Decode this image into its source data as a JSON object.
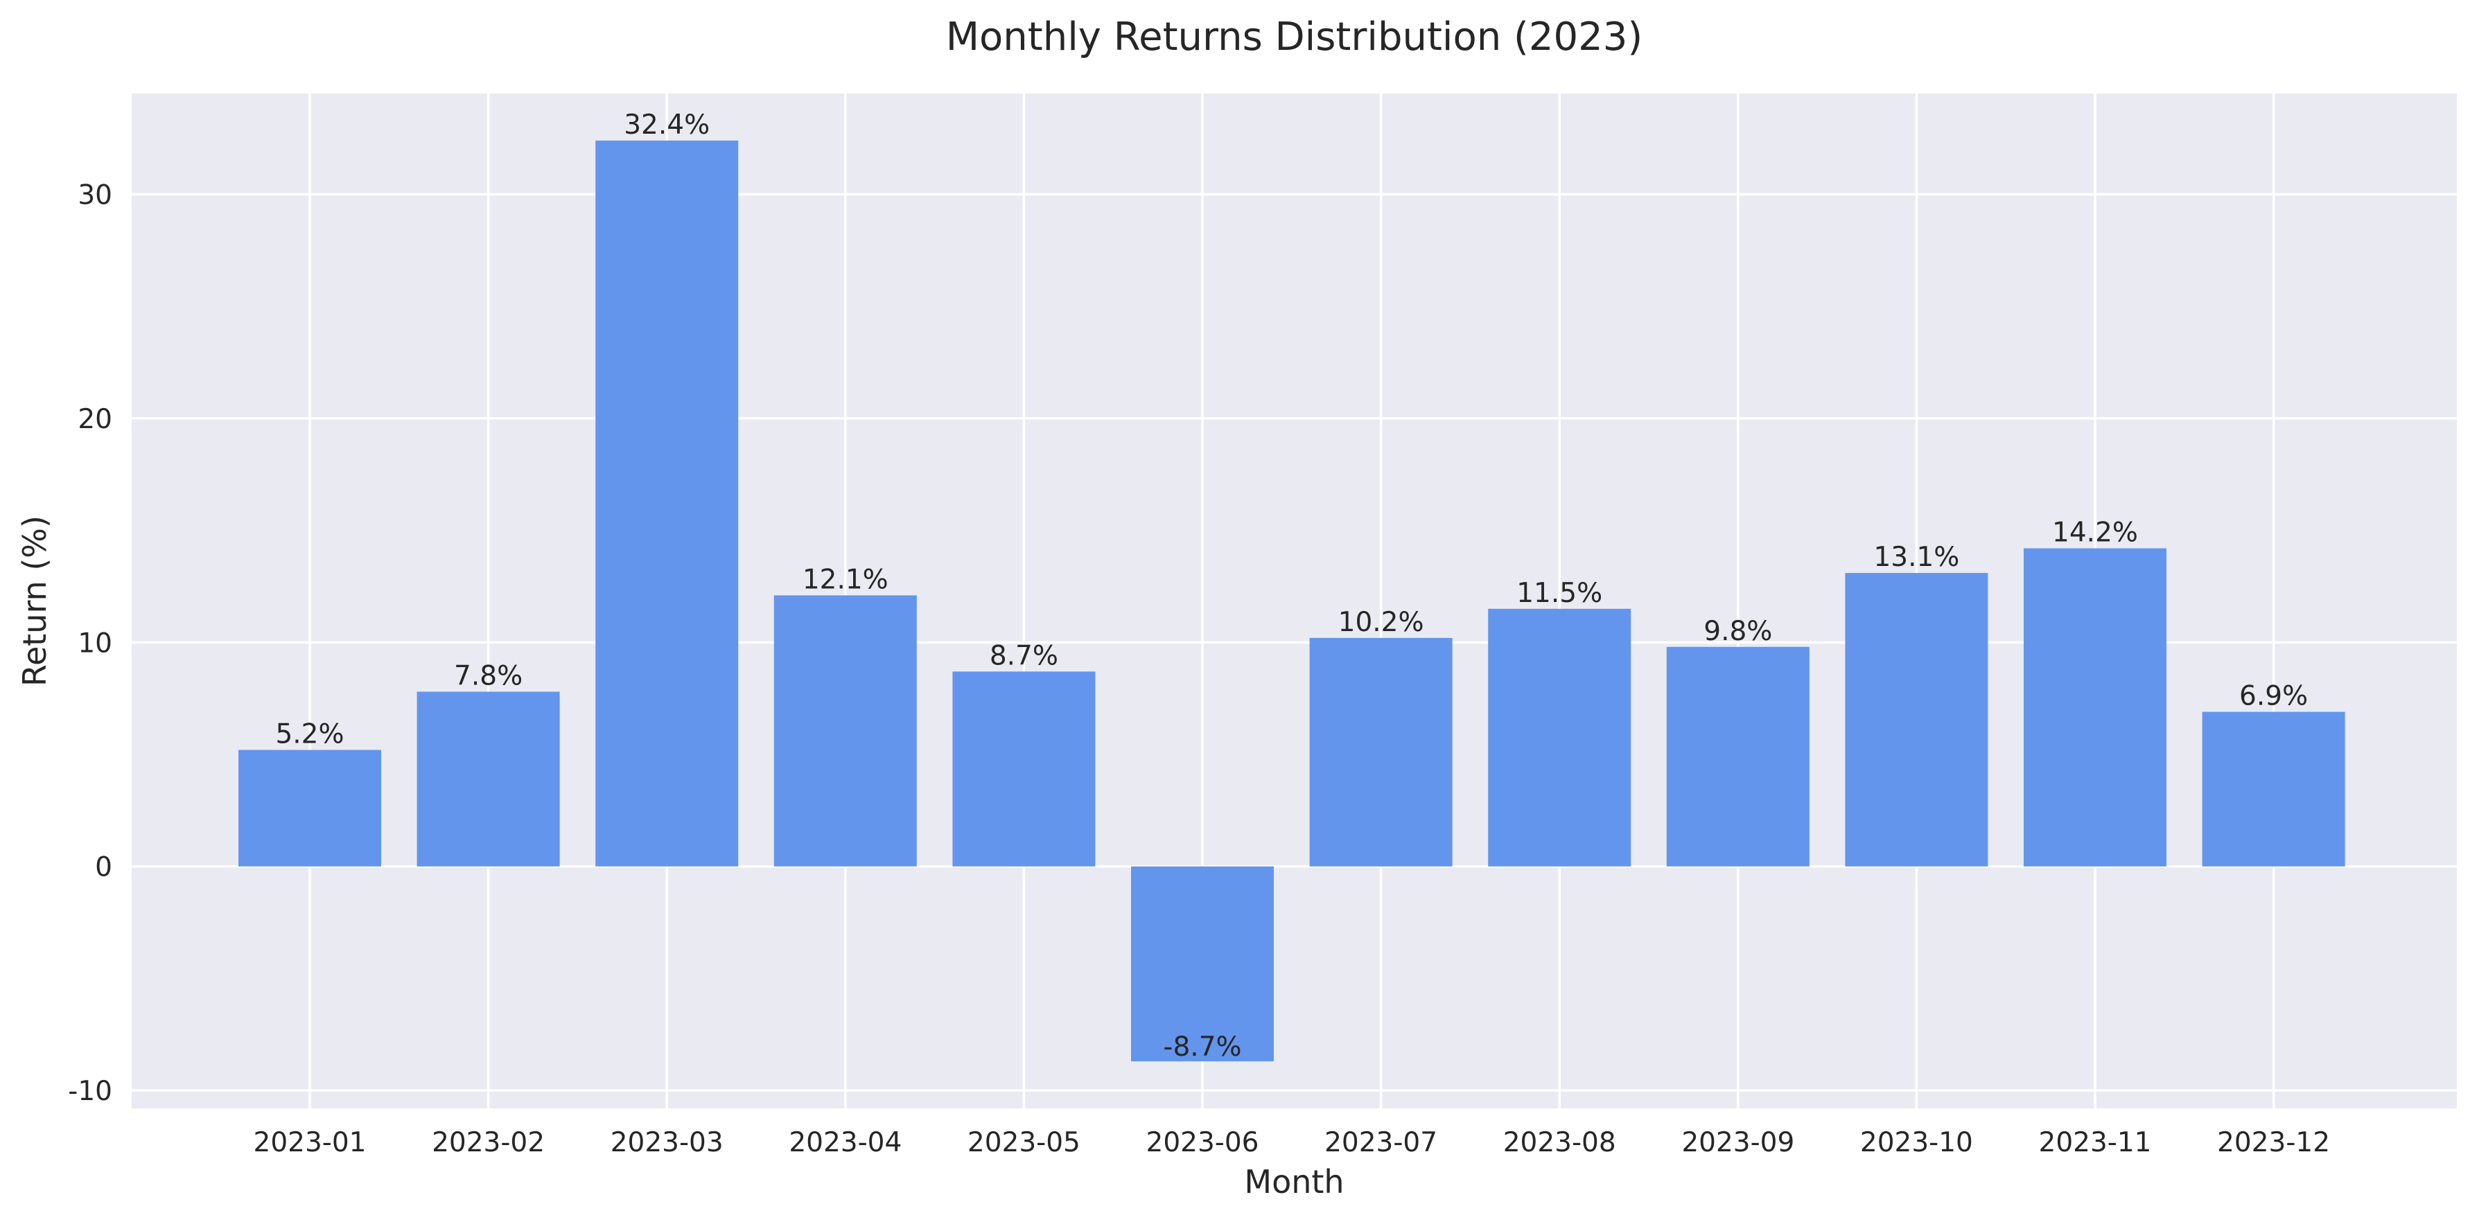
{
  "colors": {
    "plot_background": "#eaeaf2",
    "grid": "#ffffff",
    "bar": "#6495ed",
    "text": "#262626"
  },
  "chart_data": {
    "type": "bar",
    "title": "Monthly Returns Distribution (2023)",
    "xlabel": "Month",
    "ylabel": "Return (%)",
    "categories": [
      "2023-01",
      "2023-02",
      "2023-03",
      "2023-04",
      "2023-05",
      "2023-06",
      "2023-07",
      "2023-08",
      "2023-09",
      "2023-10",
      "2023-11",
      "2023-12"
    ],
    "values": [
      5.2,
      7.8,
      32.4,
      12.1,
      8.7,
      -8.7,
      10.2,
      11.5,
      9.8,
      13.1,
      14.2,
      6.9
    ],
    "value_labels": [
      "5.2%",
      "7.8%",
      "32.4%",
      "12.1%",
      "8.7%",
      "-8.7%",
      "10.2%",
      "11.5%",
      "9.8%",
      "13.1%",
      "14.2%",
      "6.9%"
    ],
    "ylim": [
      -10.8,
      34.5
    ],
    "yticks": [
      -10,
      0,
      10,
      20,
      30
    ],
    "ytick_labels": [
      "-10",
      "0",
      "10",
      "20",
      "30"
    ],
    "grid": true,
    "legend": false
  }
}
